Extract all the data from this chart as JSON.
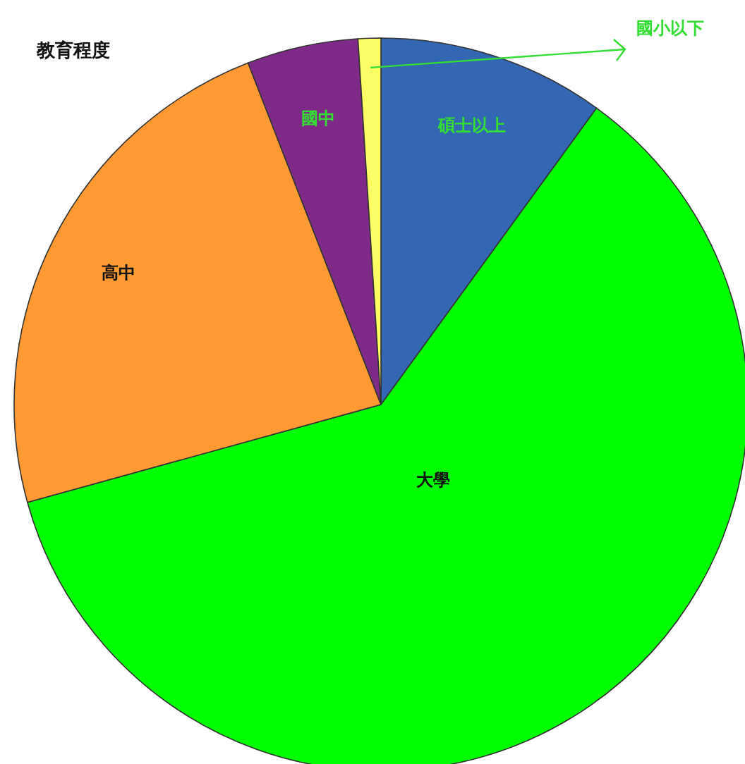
{
  "chart_data": {
    "type": "pie",
    "title": "教育程度",
    "categories": [
      "碩士以上",
      "大學",
      "高中",
      "國中",
      "國小以下"
    ],
    "values": [
      10,
      60.7,
      23.4,
      4.9,
      1
    ],
    "colors": [
      "#3366b3",
      "#00ff00",
      "#ff9933",
      "#7f2a88",
      "#ffff66"
    ]
  }
}
